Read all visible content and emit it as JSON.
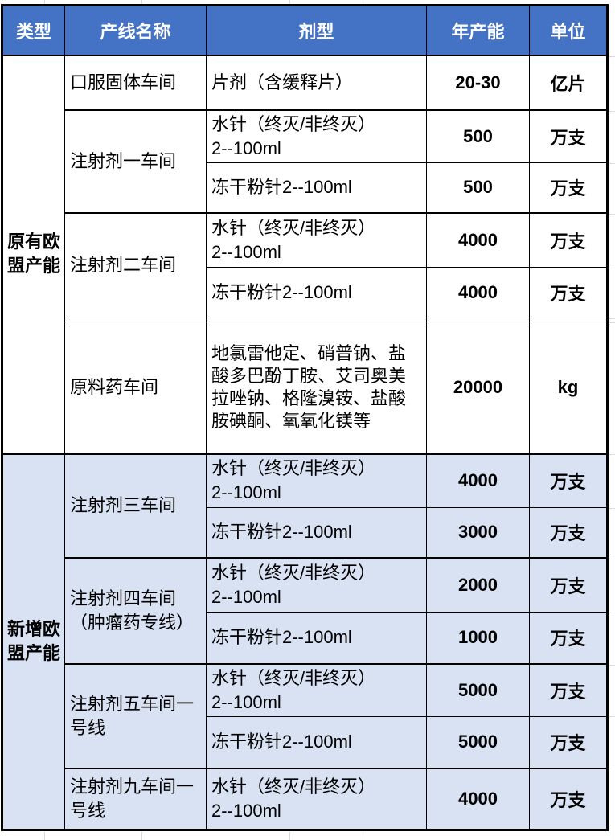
{
  "colors": {
    "header_bg": "#4472C4",
    "header_text": "#FFFFFF",
    "section_alt_bg": "#D9E2F3",
    "table_border": "#000000",
    "gridline": "#D9D9D9"
  },
  "table": {
    "header": [
      "类型",
      "产线名称",
      "剂型",
      "年产能",
      "单位"
    ],
    "sections": [
      {
        "type_label": "原有欧\n盟产能",
        "groups": [
          {
            "line": "口服固体车间",
            "rows": [
              {
                "form": "片剂（含缓释片）",
                "capacity": "20-30",
                "unit": "亿片"
              }
            ]
          },
          {
            "line": "注射剂一车间",
            "rows": [
              {
                "form": "水针（终灭/非终灭）\n2--100ml",
                "capacity": "500",
                "unit": "万支"
              },
              {
                "form": "冻干粉针2--100ml",
                "capacity": "500",
                "unit": "万支"
              }
            ]
          },
          {
            "line": "注射剂二车间",
            "rows": [
              {
                "form": "水针（终灭/非终灭）\n2--100ml",
                "capacity": "4000",
                "unit": "万支"
              },
              {
                "form": "冻干粉针2--100ml",
                "capacity": "4000",
                "unit": "万支"
              }
            ]
          },
          {
            "line": "原料药车间",
            "rows": [
              {
                "form": "地氯雷他定、硝普钠、盐酸多巴酚丁胺、艾司奥美拉唑钠、格隆溴铵、盐酸胺碘酮、氧氧化镁等",
                "capacity": "20000",
                "unit": "kg"
              }
            ]
          }
        ]
      },
      {
        "type_label": "新增欧\n盟产能",
        "groups": [
          {
            "line": "注射剂三车间",
            "rows": [
              {
                "form": "水针（终灭/非终灭）\n2--100ml",
                "capacity": "4000",
                "unit": "万支"
              },
              {
                "form": "冻干粉针2--100ml",
                "capacity": "3000",
                "unit": "万支"
              }
            ]
          },
          {
            "line": "注射剂四车间\n（肿瘤药专线）",
            "rows": [
              {
                "form": "水针（终灭/非终灭）\n2--100ml",
                "capacity": "2000",
                "unit": "万支"
              },
              {
                "form": "冻干粉针2--100ml",
                "capacity": "1000",
                "unit": "万支"
              }
            ]
          },
          {
            "line": "注射剂五车间一\n号线",
            "rows": [
              {
                "form": "水针（终灭/非终灭）\n2--100ml",
                "capacity": "5000",
                "unit": "万支"
              },
              {
                "form": "冻干粉针2--100ml",
                "capacity": "5000",
                "unit": "万支"
              }
            ]
          },
          {
            "line": "注射剂九车间一\n号线",
            "rows": [
              {
                "form": "水针（终灭/非终灭）\n2--100ml",
                "capacity": "4000",
                "unit": "万支"
              }
            ]
          }
        ]
      }
    ]
  }
}
